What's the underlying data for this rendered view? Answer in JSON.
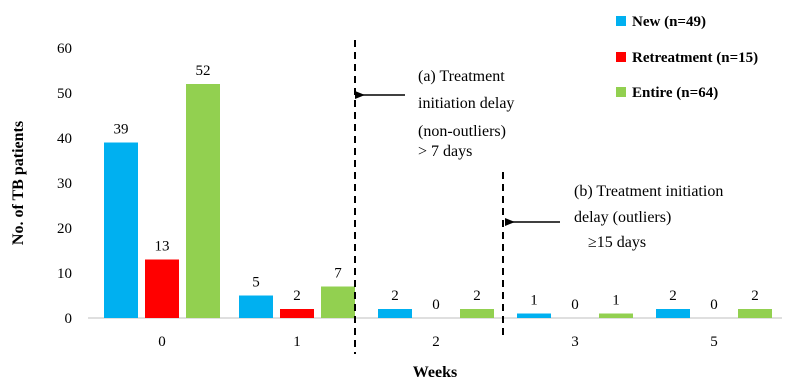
{
  "chart_data": {
    "type": "bar",
    "xlabel": "Weeks",
    "ylabel": "No. of TB patients",
    "ylim": [
      0,
      60
    ],
    "yticks": [
      0,
      10,
      20,
      30,
      40,
      50,
      60
    ],
    "categories": [
      "0",
      "1",
      "2",
      "3",
      "5"
    ],
    "series": [
      {
        "name": "New (n=49)",
        "values": [
          39,
          5,
          2,
          1,
          2
        ],
        "color": "#00b0f0"
      },
      {
        "name": "Retreatment (n=15)",
        "values": [
          13,
          2,
          0,
          0,
          0
        ],
        "color": "#ff0000"
      },
      {
        "name": "Entire (n=64)",
        "values": [
          52,
          7,
          2,
          1,
          2
        ],
        "color": "#92d050"
      }
    ],
    "legend_position": "top-right",
    "grid": false,
    "annotations": [
      {
        "lines": [
          "(a) Treatment",
          "initiation delay",
          "(non-outliers)",
          "> 7 days"
        ]
      },
      {
        "lines": [
          "(b) Treatment initiation",
          "delay (outliers)",
          "≥15 days"
        ]
      }
    ]
  }
}
